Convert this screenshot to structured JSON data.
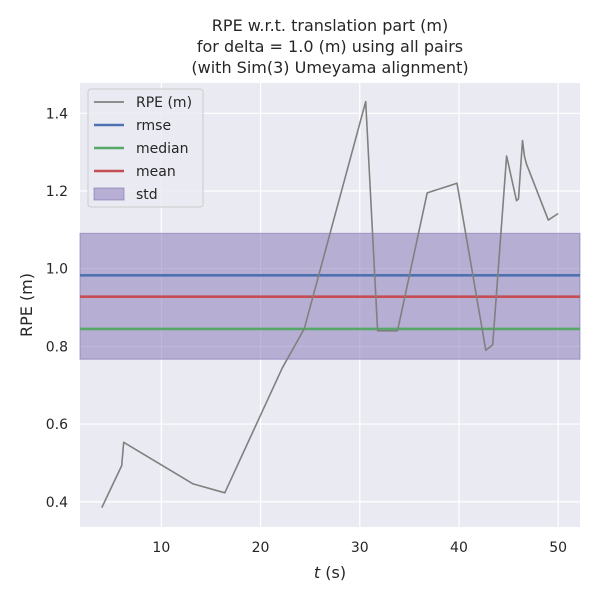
{
  "chart_data": {
    "type": "line",
    "title": [
      "RPE w.r.t. translation part (m)",
      "for delta = 1.0 (m) using all pairs",
      "(with Sim(3) Umeyama alignment)"
    ],
    "xlabel": "t (s)",
    "ylabel": "RPE (m)",
    "xlim": [
      1.8,
      52.2
    ],
    "ylim": [
      0.335,
      1.478
    ],
    "xticks": [
      10,
      20,
      30,
      40,
      50
    ],
    "yticks": [
      0.4,
      0.6,
      0.8,
      1.0,
      1.2,
      1.4
    ],
    "ytick_labels": [
      "0.4",
      "0.6",
      "0.8",
      "1.0",
      "1.2",
      "1.4"
    ],
    "xtick_labels": [
      "10",
      "20",
      "30",
      "40",
      "50"
    ],
    "grid": true,
    "background": "#eaeaf2",
    "legend": {
      "position": "top-left",
      "entries": [
        "RPE (m)",
        "rmse",
        "median",
        "mean",
        "std"
      ]
    },
    "series": [
      {
        "name": "RPE (m)",
        "color": "#808080",
        "x": [
          4.0,
          6.0,
          6.2,
          13.2,
          16.4,
          22.2,
          24.4,
          30.6,
          31.8,
          33.8,
          36.8,
          39.8,
          42.7,
          43.4,
          44.8,
          45.8,
          46.0,
          46.4,
          46.6,
          46.8,
          49.0,
          50.0
        ],
        "y": [
          0.385,
          0.493,
          0.553,
          0.446,
          0.423,
          0.745,
          0.845,
          1.43,
          0.84,
          0.84,
          1.195,
          1.22,
          0.79,
          0.804,
          1.29,
          1.175,
          1.18,
          1.33,
          1.29,
          1.27,
          1.125,
          1.142
        ]
      },
      {
        "name": "rmse",
        "color": "#4c72b0",
        "value": 0.983
      },
      {
        "name": "median",
        "color": "#55a868",
        "value": 0.845
      },
      {
        "name": "mean",
        "color": "#c44e52",
        "value": 0.928
      },
      {
        "name": "std",
        "color": "#8172b3",
        "range": [
          0.767,
          1.091
        ]
      }
    ]
  }
}
